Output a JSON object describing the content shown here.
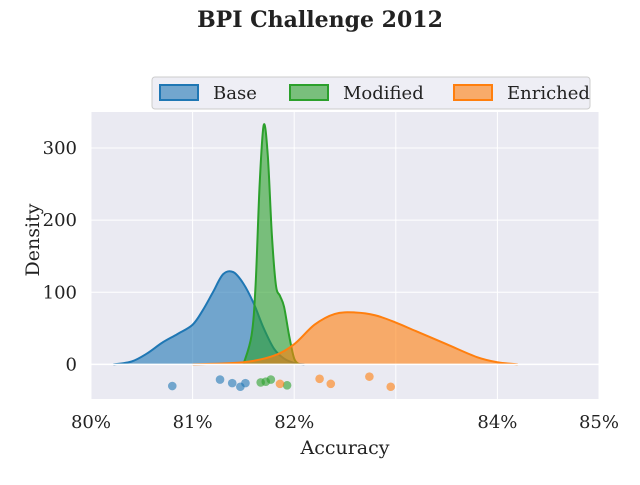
{
  "chart_data": {
    "type": "area",
    "title": "BPI Challenge 2012",
    "xlabel": "Accuracy",
    "ylabel": "Density",
    "xlim": [
      80,
      85
    ],
    "ylim": [
      -48,
      350
    ],
    "grid": true,
    "legend_position": "top-right, above plot",
    "x_ticks": [
      {
        "value": 80,
        "label": "80%"
      },
      {
        "value": 81,
        "label": "81%"
      },
      {
        "value": 82,
        "label": "82%"
      },
      {
        "value": 84,
        "label": "84%"
      },
      {
        "value": 85,
        "label": "85%"
      }
    ],
    "y_ticks": [
      {
        "value": 0,
        "label": "0"
      },
      {
        "value": 100,
        "label": "100"
      },
      {
        "value": 200,
        "label": "200"
      },
      {
        "value": 300,
        "label": "300"
      }
    ],
    "series": [
      {
        "name": "Base",
        "color": "#1f77b4",
        "density": {
          "x": [
            80.22,
            80.4,
            80.55,
            80.7,
            80.85,
            81.0,
            81.1,
            81.2,
            81.3,
            81.4,
            81.5,
            81.6,
            81.7,
            81.8,
            81.9,
            82.0,
            82.1
          ],
          "y": [
            0,
            4,
            15,
            30,
            42,
            55,
            75,
            100,
            125,
            128,
            112,
            85,
            50,
            22,
            8,
            2,
            0
          ]
        },
        "points": {
          "x": [
            80.8,
            81.27,
            81.39,
            81.47,
            81.52
          ],
          "y": [
            -30,
            -21,
            -26,
            -31,
            -26
          ]
        }
      },
      {
        "name": "Modified",
        "color": "#2ca02c",
        "density": {
          "x": [
            81.5,
            81.58,
            81.62,
            81.66,
            81.7,
            81.74,
            81.78,
            81.82,
            81.86,
            81.9,
            81.95,
            82.0,
            82.05
          ],
          "y": [
            0,
            40,
            110,
            250,
            332,
            290,
            180,
            110,
            95,
            80,
            40,
            8,
            0
          ]
        },
        "points": {
          "x": [
            81.67,
            81.72,
            81.77,
            81.93
          ],
          "y": [
            -25,
            -24,
            -21,
            -29
          ]
        }
      },
      {
        "name": "Enriched",
        "color": "#ff7f0e",
        "density": {
          "x": [
            81.0,
            81.5,
            81.8,
            82.0,
            82.2,
            82.4,
            82.6,
            82.8,
            83.0,
            83.2,
            83.5,
            83.8,
            84.0,
            84.2
          ],
          "y": [
            0,
            3,
            12,
            28,
            55,
            70,
            72,
            68,
            58,
            46,
            28,
            10,
            3,
            0
          ]
        },
        "points": {
          "x": [
            81.86,
            82.25,
            82.36,
            82.74,
            82.95
          ],
          "y": [
            -27,
            -20,
            -27,
            -17,
            -31
          ]
        }
      }
    ]
  }
}
